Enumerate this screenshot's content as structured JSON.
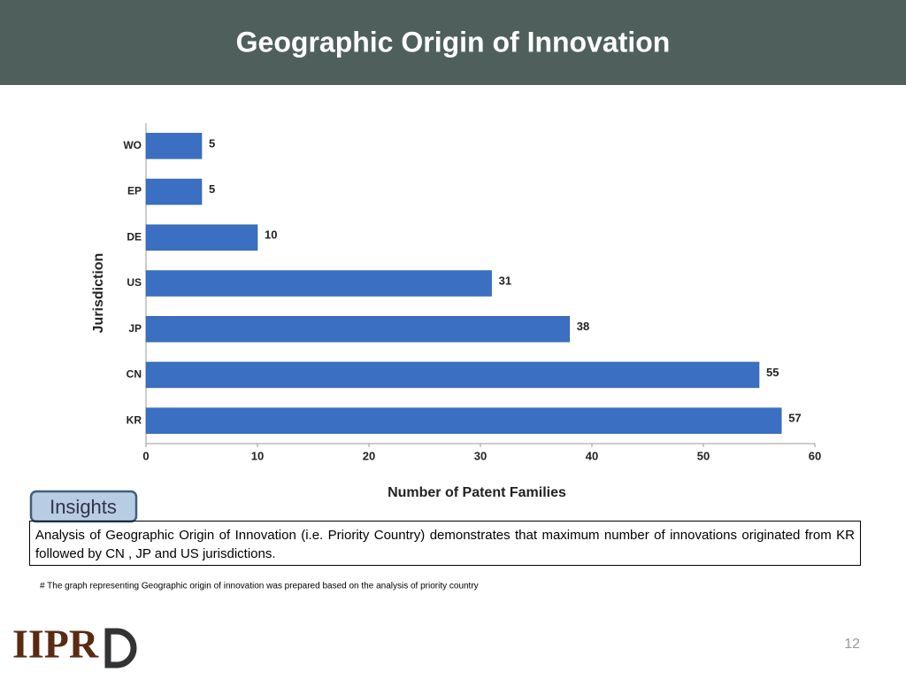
{
  "header": {
    "title": "Geographic Origin of Innovation"
  },
  "chart_data": {
    "type": "hbar",
    "categories": [
      "WO",
      "EP",
      "DE",
      "US",
      "JP",
      "CN",
      "KR"
    ],
    "values": [
      5,
      5,
      10,
      31,
      38,
      55,
      57
    ],
    "color": "#3a6fc2",
    "x_label": "Number of Patent Families",
    "y_label": "Jurisdiction",
    "xlim": [
      0,
      60
    ],
    "xticks": [
      0,
      10,
      20,
      30,
      40,
      50,
      60
    ],
    "grid": false
  },
  "insights": {
    "label": "Insights",
    "text": "Analysis of Geographic Origin of Innovation (i.e. Priority Country) demonstrates that maximum number of innovations originated from KR followed by CN , JP and US jurisdictions."
  },
  "footnote": "# The graph representing Geographic origin of innovation was prepared based on the analysis of priority country",
  "page_number": "12",
  "logo_text": "IIPR"
}
